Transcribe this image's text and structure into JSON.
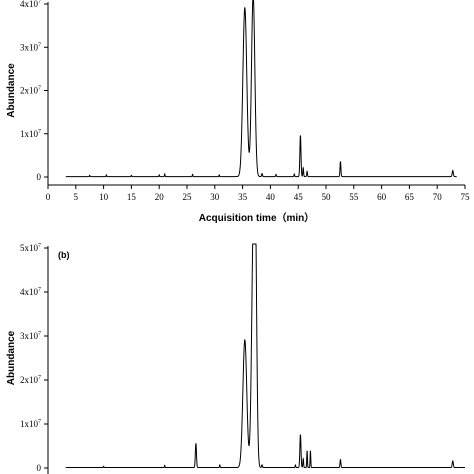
{
  "chart_data": [
    {
      "type": "line",
      "panel_label": "",
      "title": "",
      "xlabel": "Acquisition time（min）",
      "ylabel": "Abundance",
      "xlim": [
        0,
        75
      ],
      "ylim": [
        0,
        40000000
      ],
      "x_ticks": [
        0,
        5,
        10,
        15,
        20,
        25,
        30,
        35,
        40,
        45,
        50,
        55,
        60,
        65,
        70,
        75
      ],
      "y_ticks": [
        {
          "value": 0,
          "label": "0",
          "exp": ""
        },
        {
          "value": 10000000,
          "label": "1x10",
          "exp": "7"
        },
        {
          "value": 20000000,
          "label": "2x10",
          "exp": "7"
        },
        {
          "value": 30000000,
          "label": "3x10",
          "exp": "7"
        },
        {
          "value": 40000000,
          "label": "4x10",
          "exp": "7"
        }
      ],
      "series": [
        {
          "color": "#000000",
          "baseline": 100000,
          "x_range": [
            3.2,
            73.5
          ],
          "peaks": [
            {
              "x": 7.5,
              "y": 300000,
              "w": 0.05
            },
            {
              "x": 10.5,
              "y": 400000,
              "w": 0.05
            },
            {
              "x": 15.0,
              "y": 300000,
              "w": 0.05
            },
            {
              "x": 20.0,
              "y": 400000,
              "w": 0.05
            },
            {
              "x": 21.0,
              "y": 600000,
              "w": 0.05
            },
            {
              "x": 26.0,
              "y": 500000,
              "w": 0.05
            },
            {
              "x": 30.8,
              "y": 400000,
              "w": 0.05
            },
            {
              "x": 35.4,
              "y": 39000000,
              "w": 0.35
            },
            {
              "x": 36.9,
              "y": 42000000,
              "w": 0.3
            },
            {
              "x": 38.5,
              "y": 700000,
              "w": 0.08
            },
            {
              "x": 41.0,
              "y": 500000,
              "w": 0.06
            },
            {
              "x": 44.3,
              "y": 600000,
              "w": 0.06
            },
            {
              "x": 45.4,
              "y": 9500000,
              "w": 0.1
            },
            {
              "x": 45.9,
              "y": 2000000,
              "w": 0.07
            },
            {
              "x": 46.6,
              "y": 1200000,
              "w": 0.07
            },
            {
              "x": 52.6,
              "y": 3500000,
              "w": 0.08
            },
            {
              "x": 72.8,
              "y": 1400000,
              "w": 0.1
            }
          ]
        }
      ]
    },
    {
      "type": "line",
      "panel_label": "(b)",
      "title": "",
      "xlabel": "",
      "ylabel": "Abundance",
      "xlim": [
        0,
        75
      ],
      "ylim": [
        0,
        50000000
      ],
      "x_ticks": [],
      "y_ticks": [
        {
          "value": 0,
          "label": "0",
          "exp": ""
        },
        {
          "value": 10000000,
          "label": "1x10",
          "exp": "7"
        },
        {
          "value": 20000000,
          "label": "2x10",
          "exp": "7"
        },
        {
          "value": 30000000,
          "label": "3x10",
          "exp": "7"
        },
        {
          "value": 40000000,
          "label": "4x10",
          "exp": "7"
        },
        {
          "value": 50000000,
          "label": "5x10",
          "exp": "7"
        }
      ],
      "series": [
        {
          "color": "#000000",
          "baseline": 100000,
          "x_range": [
            3.2,
            75
          ],
          "peaks": [
            {
              "x": 10.0,
              "y": 300000,
              "w": 0.05
            },
            {
              "x": 21.0,
              "y": 500000,
              "w": 0.05
            },
            {
              "x": 26.6,
              "y": 5500000,
              "w": 0.1
            },
            {
              "x": 30.9,
              "y": 600000,
              "w": 0.06
            },
            {
              "x": 35.4,
              "y": 29000000,
              "w": 0.35
            },
            {
              "x": 36.9,
              "y": 47000000,
              "w": 0.3
            },
            {
              "x": 37.3,
              "y": 45000000,
              "w": 0.25
            },
            {
              "x": 38.5,
              "y": 600000,
              "w": 0.08
            },
            {
              "x": 44.5,
              "y": 600000,
              "w": 0.06
            },
            {
              "x": 45.4,
              "y": 7500000,
              "w": 0.1
            },
            {
              "x": 45.9,
              "y": 2000000,
              "w": 0.07
            },
            {
              "x": 46.6,
              "y": 3800000,
              "w": 0.06
            },
            {
              "x": 47.2,
              "y": 3800000,
              "w": 0.06
            },
            {
              "x": 52.6,
              "y": 1800000,
              "w": 0.08
            },
            {
              "x": 72.8,
              "y": 1500000,
              "w": 0.1
            }
          ]
        }
      ]
    }
  ]
}
